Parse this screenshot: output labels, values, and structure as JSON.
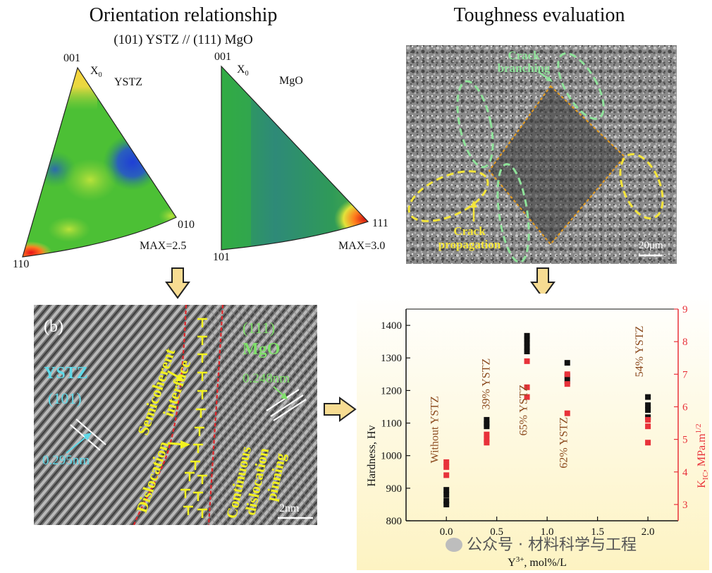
{
  "headings": {
    "orientation_title": "Orientation relationship",
    "orientation_subtitle": "(101) YSTZ // (111) MgO",
    "toughness_title": "Toughness evaluation"
  },
  "ipf_ystz": {
    "corner_top": "001",
    "x0": "X",
    "x0_sub": "0",
    "name": "YSTZ",
    "corner_right": "010",
    "corner_left": "110",
    "max": "MAX=2.5"
  },
  "ipf_mgo": {
    "corner_top": "001",
    "x0": "X",
    "x0_sub": "0",
    "name": "MgO",
    "corner_right": "111",
    "corner_left": "101",
    "max": "MAX=3.0"
  },
  "sem": {
    "crack_branching": [
      "Crack",
      "branching"
    ],
    "crack_propagation": [
      "Crack",
      "propagation"
    ],
    "scale": "20μm"
  },
  "hrtem": {
    "panel": "(b)",
    "ystz": "YSTZ",
    "ystz_plane": "(101)",
    "ystz_d": "0.295nm",
    "mgo_plane": "(111)",
    "mgo": "MgO",
    "mgo_d": "0.248nm",
    "semicoherent": [
      "Semicoherent",
      "interface"
    ],
    "dislocation": "Dislocation",
    "continuous": [
      "Continuous",
      "dislocation",
      "pinning"
    ],
    "scale": "2nm"
  },
  "watermark": "公众号 · 材料科学与工程",
  "colors": {
    "hardness": "#111111",
    "kic": "#e8323a",
    "label_brown": "#8b4a1e",
    "ystz_cyan": "#5fd9e8",
    "mgo_green": "#7fe06a",
    "dislocation_yellow": "#f2f21e",
    "crack_yellow": "#f4e53a",
    "crack_green": "#8fe39a"
  },
  "chart_data": {
    "type": "scatter",
    "xlabel": "Y",
    "xlabel_sup": "3+",
    "xlabel_rest": ", mol%/L",
    "ylabel_left": "Hardness, Hv",
    "ylabel_right_main": "K",
    "ylabel_right_sub": "IC",
    "ylabel_right_rest": ", MPa.m",
    "ylabel_right_sup": "1/2",
    "xlim": [
      -0.4,
      2.3
    ],
    "ylim_left": [
      800,
      1450
    ],
    "ylim_right": [
      2.5,
      9
    ],
    "x_ticks": [
      0.0,
      0.5,
      1.0,
      1.5,
      2.0
    ],
    "x_tick_labels": [
      "0.0",
      "0.5",
      "1.0",
      "1.5",
      "2.0"
    ],
    "y_left_ticks": [
      800,
      900,
      1000,
      1100,
      1200,
      1300,
      1400
    ],
    "y_right_ticks": [
      3,
      4,
      5,
      6,
      7,
      8,
      9
    ],
    "series": [
      {
        "name": "Hardness",
        "axis": "left",
        "points": [
          [
            0.0,
            850
          ],
          [
            0.0,
            862
          ],
          [
            0.0,
            880
          ],
          [
            0.0,
            895
          ],
          [
            0.4,
            1090
          ],
          [
            0.4,
            1098
          ],
          [
            0.4,
            1110
          ],
          [
            0.8,
            1320
          ],
          [
            0.8,
            1333
          ],
          [
            0.8,
            1346
          ],
          [
            0.8,
            1358
          ],
          [
            0.8,
            1368
          ],
          [
            1.2,
            1228
          ],
          [
            1.2,
            1245
          ],
          [
            1.2,
            1285
          ],
          [
            2.0,
            1118
          ],
          [
            2.0,
            1140
          ],
          [
            2.0,
            1155
          ],
          [
            2.0,
            1180
          ]
        ]
      },
      {
        "name": "KIC",
        "axis": "right",
        "points": [
          [
            0.0,
            3.9
          ],
          [
            0.0,
            4.15
          ],
          [
            0.0,
            4.3
          ],
          [
            0.4,
            4.9
          ],
          [
            0.4,
            5.0
          ],
          [
            0.4,
            5.15
          ],
          [
            0.8,
            6.3
          ],
          [
            0.8,
            6.6
          ],
          [
            0.8,
            7.4
          ],
          [
            1.2,
            5.8
          ],
          [
            1.2,
            6.7
          ],
          [
            1.2,
            7.0
          ],
          [
            2.0,
            4.9
          ],
          [
            2.0,
            5.4
          ],
          [
            2.0,
            5.6
          ]
        ]
      }
    ],
    "annotations": [
      {
        "text": "Without YSTZ",
        "x": -0.08,
        "y": 1080
      },
      {
        "text": "39% YSTZ",
        "x": 0.43,
        "y": 1220
      },
      {
        "text": "65% YSTZ",
        "x": 0.8,
        "y": 1140
      },
      {
        "text": "62% YSTZ",
        "x": 1.2,
        "y": 1040
      },
      {
        "text": "54% YSTZ",
        "x": 1.95,
        "y": 1320
      }
    ]
  }
}
